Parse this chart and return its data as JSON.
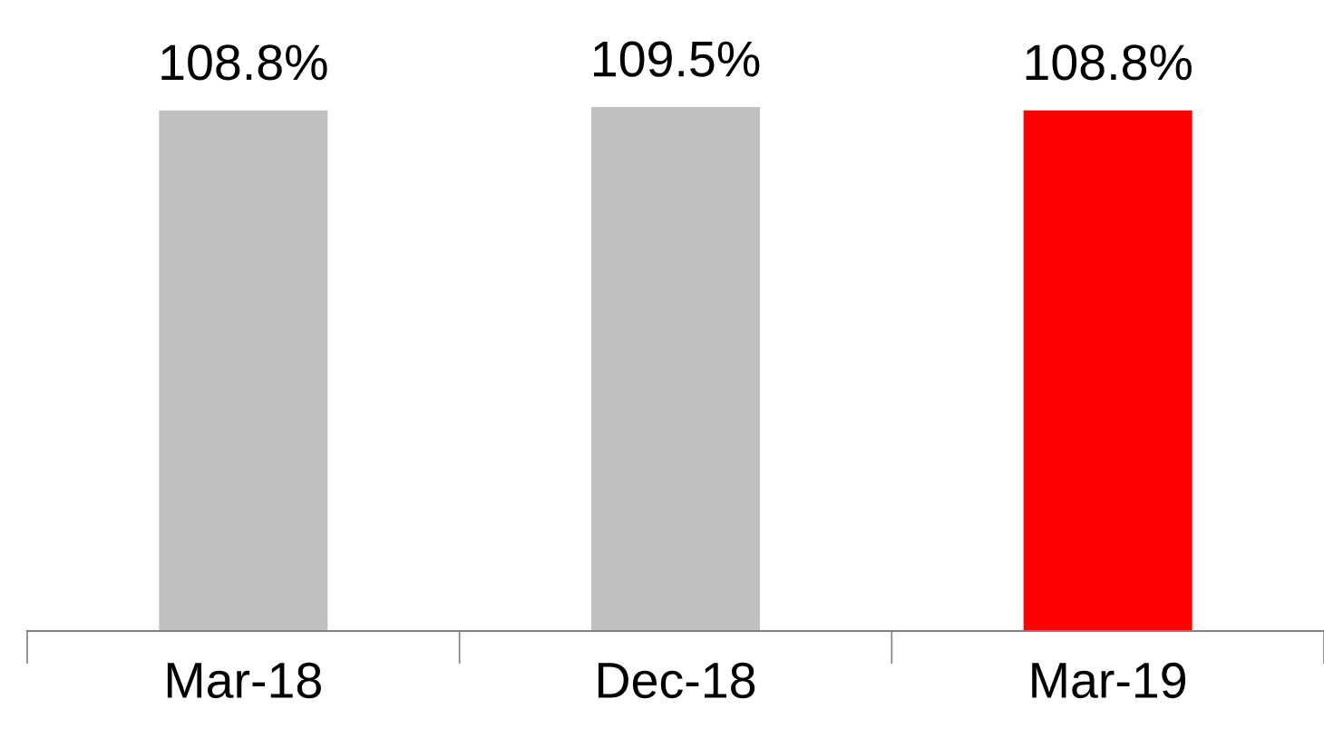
{
  "chart_data": {
    "type": "bar",
    "categories": [
      "Mar-18",
      "Dec-18",
      "Mar-19"
    ],
    "values": [
      108.8,
      109.5,
      108.8
    ],
    "colors": [
      "#bfbfbf",
      "#bfbfbf",
      "#ff0000"
    ],
    "value_labels": [
      "108.8%",
      "109.5%",
      "108.8%"
    ],
    "tick_labels": "x",
    "grid": false,
    "legend": false
  }
}
